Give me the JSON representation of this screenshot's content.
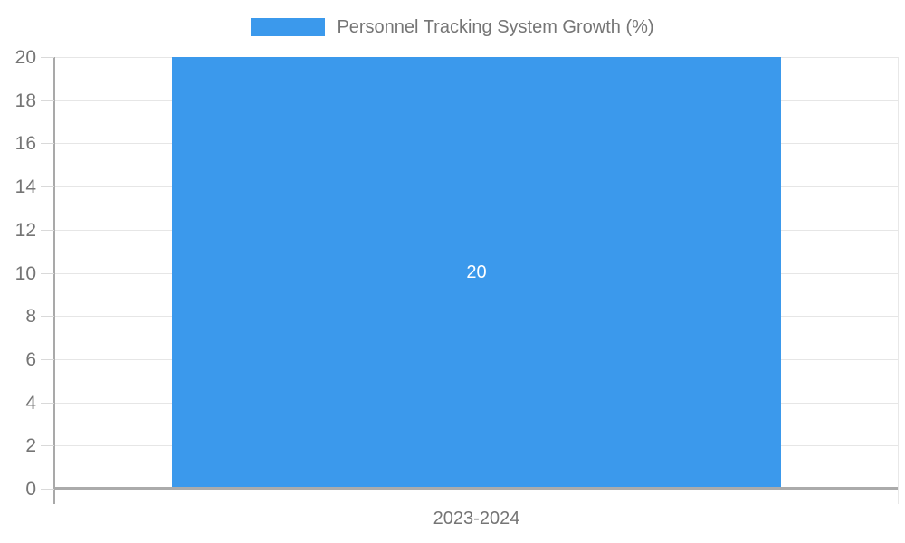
{
  "chart_data": {
    "type": "bar",
    "title": "Personnel Tracking System Growth (%)",
    "categories": [
      "2023-2024"
    ],
    "series": [
      {
        "name": "Personnel Tracking System Growth (%)",
        "values": [
          20
        ]
      }
    ],
    "bar_labels": [
      "20"
    ],
    "xlabel": "",
    "ylabel": "",
    "ylim": [
      0,
      20
    ],
    "ytick_step": 2,
    "ytick_labels": [
      "0",
      "2",
      "4",
      "6",
      "8",
      "10",
      "12",
      "14",
      "16",
      "18",
      "20"
    ],
    "grid": true,
    "legend_position": "top",
    "colors": {
      "bar": "#3b99ec",
      "bar_label_text": "#ffffff",
      "axis_text": "#757575",
      "gridline": "#e6e6e6",
      "tick": "#d9d9d9",
      "y_axis_line": "#a9a9a9",
      "x_axis_line": "#ababab",
      "right_boundary": "#e8e8e8"
    }
  },
  "legend": {
    "label": "Personnel Tracking System Growth (%)"
  },
  "bar": {
    "value_label": "20",
    "category": "2023-2024"
  }
}
